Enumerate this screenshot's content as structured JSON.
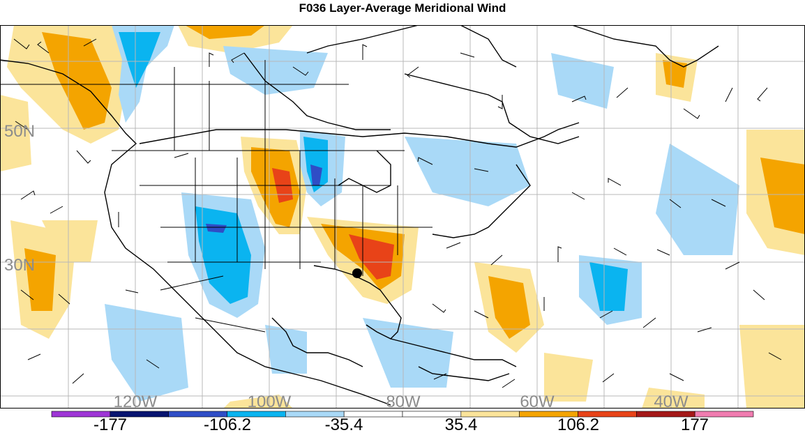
{
  "title": "F036 Layer-Average Meridional Wind",
  "map": {
    "lat_labels": [
      "50N",
      "30N"
    ],
    "lon_labels": [
      "120W",
      "100W",
      "80W",
      "60W",
      "40W"
    ],
    "marker_icon": "black-dot-marker"
  },
  "colorbar": {
    "labels": [
      "-177",
      "-106.2",
      "-35.4",
      "35.4",
      "106.2",
      "177"
    ],
    "colors": [
      "#9e35d6",
      "#071470",
      "#2f4dc6",
      "#0ab4f0",
      "#a9d9f7",
      "#ffffff",
      "#ffffff",
      "#fbe49a",
      "#f4a400",
      "#e84318",
      "#a41818",
      "#f07cb0"
    ]
  }
}
